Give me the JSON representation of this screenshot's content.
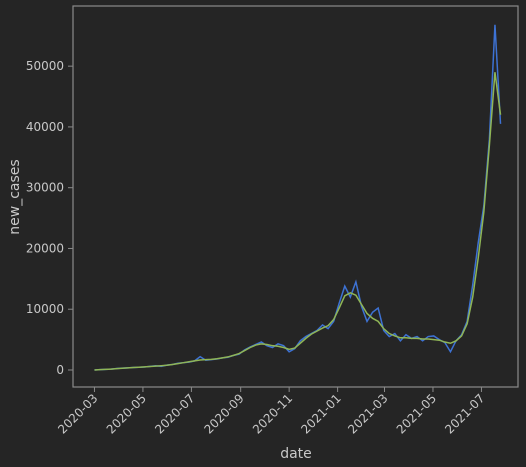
{
  "chart_data": {
    "type": "line",
    "x_label": "date",
    "y_label": "new_cases",
    "x": [
      "2020-03-01",
      "2020-03-08",
      "2020-03-15",
      "2020-03-22",
      "2020-03-29",
      "2020-04-05",
      "2020-04-12",
      "2020-04-19",
      "2020-04-26",
      "2020-05-03",
      "2020-05-10",
      "2020-05-17",
      "2020-05-24",
      "2020-05-31",
      "2020-06-07",
      "2020-06-14",
      "2020-06-21",
      "2020-06-28",
      "2020-07-05",
      "2020-07-12",
      "2020-07-19",
      "2020-07-26",
      "2020-08-02",
      "2020-08-09",
      "2020-08-16",
      "2020-08-23",
      "2020-08-30",
      "2020-09-06",
      "2020-09-13",
      "2020-09-20",
      "2020-09-27",
      "2020-10-04",
      "2020-10-11",
      "2020-10-18",
      "2020-10-25",
      "2020-11-01",
      "2020-11-08",
      "2020-11-15",
      "2020-11-22",
      "2020-11-29",
      "2020-12-06",
      "2020-12-13",
      "2020-12-20",
      "2020-12-27",
      "2021-01-03",
      "2021-01-10",
      "2021-01-17",
      "2021-01-24",
      "2021-01-31",
      "2021-02-07",
      "2021-02-14",
      "2021-02-21",
      "2021-02-28",
      "2021-03-07",
      "2021-03-14",
      "2021-03-21",
      "2021-03-28",
      "2021-04-04",
      "2021-04-11",
      "2021-04-18",
      "2021-04-25",
      "2021-05-02",
      "2021-05-09",
      "2021-05-16",
      "2021-05-23",
      "2021-05-30",
      "2021-06-06",
      "2021-06-13",
      "2021-06-20",
      "2021-06-27",
      "2021-07-04",
      "2021-07-11",
      "2021-07-18",
      "2021-07-25"
    ],
    "series": [
      {
        "color": "#3d72d4",
        "values": [
          0,
          50,
          100,
          150,
          250,
          300,
          350,
          400,
          450,
          500,
          600,
          700,
          600,
          800,
          900,
          1100,
          1200,
          1300,
          1500,
          2200,
          1600,
          1700,
          1800,
          2000,
          2100,
          2400,
          2600,
          3300,
          3800,
          4200,
          4600,
          4000,
          3700,
          4300,
          4000,
          3000,
          3500,
          4800,
          5500,
          6000,
          6500,
          7400,
          6800,
          8000,
          11000,
          13800,
          12000,
          14500,
          10500,
          8000,
          9500,
          10200,
          6500,
          5500,
          6000,
          4800,
          5800,
          5200,
          5500,
          4800,
          5500,
          5600,
          5000,
          4500,
          3000,
          4800,
          5800,
          8000,
          14000,
          21000,
          27000,
          38000,
          56800,
          40500
        ]
      },
      {
        "color": "#8fb556",
        "values": [
          0,
          50,
          100,
          150,
          220,
          290,
          350,
          400,
          450,
          510,
          580,
          640,
          700,
          780,
          900,
          1050,
          1200,
          1350,
          1500,
          1650,
          1700,
          1750,
          1850,
          2000,
          2150,
          2400,
          2700,
          3200,
          3700,
          4100,
          4300,
          4200,
          4000,
          3900,
          3700,
          3400,
          3600,
          4400,
          5200,
          5900,
          6400,
          6900,
          7300,
          8300,
          10200,
          12200,
          12700,
          12300,
          10800,
          9300,
          8500,
          8000,
          6800,
          6000,
          5600,
          5300,
          5300,
          5200,
          5200,
          5100,
          5100,
          5000,
          4900,
          4600,
          4400,
          4800,
          5600,
          7600,
          12000,
          18500,
          26000,
          37000,
          49000,
          42000
        ]
      }
    ],
    "xlim": [
      "2020-02-03",
      "2021-08-16"
    ],
    "xticks": [
      "2020-03",
      "2020-05",
      "2020-07",
      "2020-09",
      "2020-11",
      "2021-01",
      "2021-03",
      "2021-05",
      "2021-07"
    ],
    "ylim": [
      -2800,
      59900
    ],
    "yticks": [
      0,
      10000,
      20000,
      30000,
      40000,
      50000
    ]
  }
}
